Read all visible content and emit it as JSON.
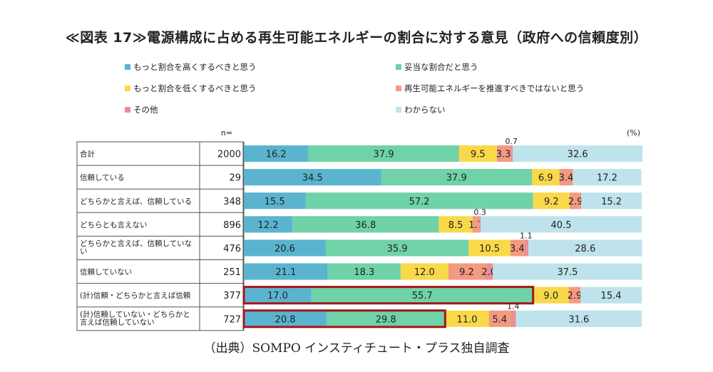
{
  "title": "≪図表 17≫電源構成に占める再生可能エネルギーの割合に対する意見（政府への信頼度別）",
  "source": "（出典）SOMPO インスティチュート・プラス独自調査",
  "chart_data": {
    "type": "bar",
    "stacked": true,
    "orientation": "horizontal",
    "n_label": "n=",
    "unit_label": "(%)",
    "categories": [
      "合計",
      "信頼している",
      "どちらかと言えば、信頼している",
      "どちらとも言えない",
      "どちらかと言えば、信頼していな\nい",
      "信頼していない",
      "(計)信頼・どちらかと言えば信頼",
      "(計)信頼していない・どちらかと\n言えば信頼していない"
    ],
    "n": [
      "2000",
      "29",
      "348",
      "896",
      "476",
      "251",
      "377",
      "727"
    ],
    "series": [
      {
        "name": "もっと割合を高くするべきと思う",
        "color": "#5ab4cf",
        "values": [
          16.2,
          34.5,
          15.5,
          12.2,
          20.6,
          21.1,
          17.0,
          20.8
        ],
        "labels": [
          "16.2",
          "34.5",
          "15.5",
          "12.2",
          "20.6",
          "21.1",
          "17.0",
          "20.8"
        ]
      },
      {
        "name": "妥当な割合だと思う",
        "color": "#6fd2a8",
        "values": [
          37.9,
          37.9,
          57.2,
          36.8,
          35.9,
          18.3,
          55.7,
          29.8
        ],
        "labels": [
          "37.9",
          "37.9",
          "57.2",
          "36.8",
          "35.9",
          "18.3",
          "55.7",
          "29.8"
        ]
      },
      {
        "name": "もっと割合を低くするべきと思う",
        "color": "#f9d94a",
        "values": [
          9.5,
          6.9,
          9.2,
          8.5,
          10.5,
          12.0,
          9.0,
          11.0
        ],
        "labels": [
          "9.5",
          "6.9",
          "9.2",
          "8.5",
          "10.5",
          "12.0",
          "9.0",
          "11.0"
        ]
      },
      {
        "name": "再生可能エネルギーを推進すべきではないと思う",
        "color": "#f39a80",
        "values": [
          3.3,
          3.4,
          2.9,
          1.7,
          3.4,
          9.2,
          2.9,
          5.4
        ],
        "labels": [
          "3.3",
          "3.4",
          "2.9",
          "1.7",
          "3.4",
          "9.2",
          "2.9",
          "5.4"
        ]
      },
      {
        "name": "その他",
        "color": "#ec8f92",
        "values": [
          0.7,
          0,
          0,
          0.3,
          1.1,
          2.0,
          0,
          1.4
        ],
        "labels": [
          "0.7",
          "",
          "",
          "0.3",
          "1.1",
          "2.0",
          "",
          "1.4"
        ]
      },
      {
        "name": "わからない",
        "color": "#bfe3ec",
        "values": [
          32.6,
          17.2,
          15.2,
          40.5,
          28.6,
          37.5,
          15.4,
          31.6
        ],
        "labels": [
          "32.6",
          "17.2",
          "15.2",
          "40.5",
          "28.6",
          "37.5",
          "15.4",
          "31.6"
        ]
      }
    ],
    "highlight_boxes": [
      {
        "row": 6,
        "from_series": 0,
        "to_series": 1
      },
      {
        "row": 7,
        "from_series": 0,
        "to_series": 1
      }
    ],
    "xlim": [
      0,
      100
    ]
  },
  "colors": {
    "highlight": "#a4161a",
    "grid": "#666666"
  }
}
